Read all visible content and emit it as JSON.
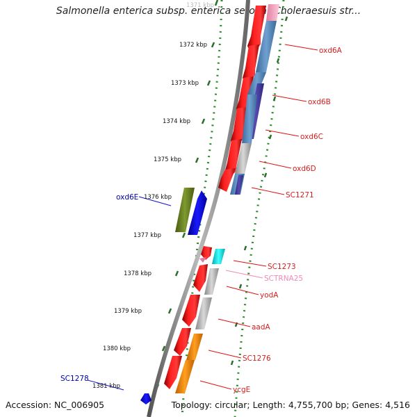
{
  "title": "Salmonella enterica subsp. enterica serovar Choleraesuis str...",
  "accession": "Accession: NC_006905",
  "topology": "Topology: circular; Length: 4,755,700 bp; Genes: 4,516",
  "scale": {
    "ticks": [
      {
        "label": "1371 kbp",
        "faded": true
      },
      {
        "label": "1372 kbp"
      },
      {
        "label": "1373 kbp"
      },
      {
        "label": "1374 kbp"
      },
      {
        "label": "1375 kbp"
      },
      {
        "label": "1376 kbp"
      },
      {
        "label": "1377 kbp"
      },
      {
        "label": "1378 kbp"
      },
      {
        "label": "1379 kbp"
      },
      {
        "label": "1380 kbp"
      },
      {
        "label": "1381 kbp"
      }
    ]
  },
  "genes": [
    {
      "name": "oxd6A",
      "color": "#d42020"
    },
    {
      "name": "oxd6B",
      "color": "#d42020"
    },
    {
      "name": "oxd6C",
      "color": "#d42020"
    },
    {
      "name": "oxd6D",
      "color": "#d42020"
    },
    {
      "name": "SC1271",
      "color": "#d42020"
    },
    {
      "name": "oxd6E",
      "color": "#0000aa"
    },
    {
      "name": "SC1273",
      "color": "#d42020"
    },
    {
      "name": "SCTRNA25",
      "color": "#f08ab8"
    },
    {
      "name": "yodA",
      "color": "#d42020"
    },
    {
      "name": "aadA",
      "color": "#d42020"
    },
    {
      "name": "SC1276",
      "color": "#d42020"
    },
    {
      "name": "SC1278",
      "color": "#0000aa"
    },
    {
      "name": "ycgE",
      "color": "#d42020"
    }
  ],
  "colors": {
    "cds": "#f00000",
    "backbone": "#999999",
    "tick_dots": "#2a8a2a",
    "tick_marks": "#2a6e2a"
  }
}
